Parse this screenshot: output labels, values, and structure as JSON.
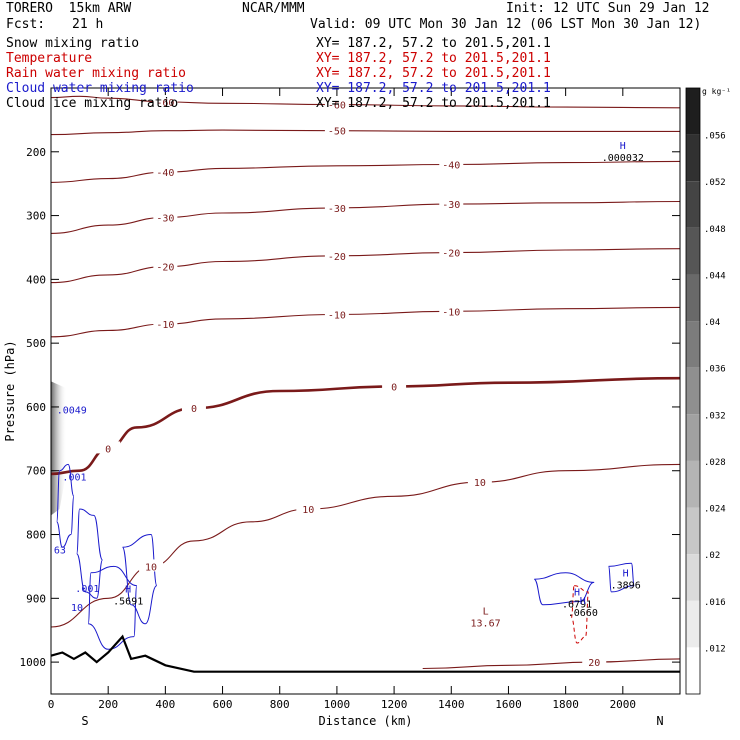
{
  "header": {
    "model": "TORERO  15km ARW",
    "center": "NCAR/MMM",
    "init": "Init: 12 UTC Sun 29 Jan 12",
    "fcst_label": "Fcst:",
    "fcst_value": "21 h",
    "valid": "Valid: 09 UTC Mon 30 Jan 12 (06 LST Mon 30 Jan 12)"
  },
  "fields": [
    {
      "name": "Snow mixing ratio",
      "xs": "XY= 187.2, 57.2 to 201.5,201.1",
      "color": "#000000"
    },
    {
      "name": "Temperature",
      "xs": "XY= 187.2, 57.2 to 201.5,201.1",
      "color": "#cc0000"
    },
    {
      "name": "Rain water mixing ratio",
      "xs": "XY= 187.2, 57.2 to 201.5,201.1",
      "color": "#cc0000"
    },
    {
      "name": "Cloud water mixing ratio",
      "xs": "XY= 187.2, 57.2 to 201.5,201.1",
      "color": "#1a1acc"
    },
    {
      "name": "Cloud ice mixing ratio",
      "xs": "XY= 187.2, 57.2 to 201.5,201.1",
      "color": "#000000"
    }
  ],
  "chart_data": {
    "type": "cross-section contour",
    "ylabel": "Pressure (hPa)",
    "xlabel": "Distance (km)",
    "x_ticks": [
      0,
      200,
      400,
      600,
      800,
      1000,
      1200,
      1400,
      1600,
      1800,
      2000
    ],
    "y_ticks": [
      200,
      300,
      400,
      500,
      600,
      700,
      800,
      900,
      1000
    ],
    "xlim": [
      0,
      2200
    ],
    "ylim": [
      1050,
      100
    ],
    "end_labels": {
      "left": "S",
      "right": "N"
    },
    "colorbar_unit": "g kg⁻¹",
    "colorbar_ticks": [
      ".056",
      ".052",
      ".048",
      ".044",
      ".04",
      ".036",
      ".032",
      ".028",
      ".024",
      ".02",
      ".016",
      ".012"
    ],
    "temperature_contours_C": [
      {
        "value": -60,
        "points": [
          [
            0,
            115
          ],
          [
            100,
            113
          ],
          [
            200,
            116
          ],
          [
            400,
            122
          ],
          [
            600,
            124
          ],
          [
            1000,
            126
          ],
          [
            1400,
            128
          ],
          [
            1800,
            130
          ],
          [
            2200,
            131
          ]
        ],
        "labels": [
          "-60",
          "-60"
        ]
      },
      {
        "value": -50,
        "points": [
          [
            0,
            173
          ],
          [
            200,
            170
          ],
          [
            400,
            167
          ],
          [
            600,
            166
          ],
          [
            1000,
            167
          ],
          [
            1400,
            168
          ],
          [
            1800,
            168
          ],
          [
            2200,
            168
          ]
        ],
        "labels": [
          "-50"
        ]
      },
      {
        "value": -40,
        "points": [
          [
            0,
            248
          ],
          [
            200,
            242
          ],
          [
            400,
            232
          ],
          [
            600,
            226
          ],
          [
            1000,
            222
          ],
          [
            1400,
            220
          ],
          [
            1800,
            217
          ],
          [
            2200,
            215
          ]
        ],
        "labels": [
          "-40",
          "-40"
        ]
      },
      {
        "value": -30,
        "points": [
          [
            0,
            328
          ],
          [
            200,
            315
          ],
          [
            400,
            303
          ],
          [
            600,
            296
          ],
          [
            1000,
            288
          ],
          [
            1400,
            282
          ],
          [
            1800,
            280
          ],
          [
            2200,
            278
          ]
        ],
        "labels": [
          "-30",
          "-30",
          "-30"
        ]
      },
      {
        "value": -20,
        "points": [
          [
            0,
            405
          ],
          [
            200,
            393
          ],
          [
            400,
            380
          ],
          [
            600,
            372
          ],
          [
            1000,
            363
          ],
          [
            1400,
            358
          ],
          [
            1800,
            354
          ],
          [
            2200,
            352
          ]
        ],
        "labels": [
          "-20",
          "-20",
          "-20"
        ]
      },
      {
        "value": -10,
        "points": [
          [
            0,
            490
          ],
          [
            200,
            480
          ],
          [
            400,
            470
          ],
          [
            600,
            462
          ],
          [
            1000,
            455
          ],
          [
            1400,
            450
          ],
          [
            1800,
            446
          ],
          [
            2200,
            444
          ]
        ],
        "labels": [
          "-10",
          "-10",
          "-10"
        ]
      },
      {
        "value": 0,
        "points": [
          [
            0,
            705
          ],
          [
            100,
            700
          ],
          [
            200,
            665
          ],
          [
            300,
            632
          ],
          [
            500,
            602
          ],
          [
            800,
            575
          ],
          [
            1200,
            568
          ],
          [
            1600,
            562
          ],
          [
            2200,
            555
          ]
        ],
        "labels": [
          "0",
          "0",
          "0"
        ],
        "bold": true
      },
      {
        "value": 10,
        "points": [
          [
            0,
            945
          ],
          [
            200,
            900
          ],
          [
            350,
            850
          ],
          [
            500,
            810
          ],
          [
            700,
            780
          ],
          [
            900,
            760
          ],
          [
            1200,
            740
          ],
          [
            1500,
            718
          ],
          [
            1800,
            700
          ],
          [
            2200,
            690
          ]
        ],
        "labels": [
          "10",
          "10",
          "10"
        ]
      },
      {
        "value": 20,
        "points": [
          [
            1300,
            1010
          ],
          [
            1600,
            1005
          ],
          [
            1900,
            1000
          ],
          [
            2200,
            995
          ]
        ],
        "labels": [
          "20"
        ]
      }
    ],
    "extrema": [
      {
        "type": "H",
        "value": ".000032",
        "x": 2000,
        "p": 205
      },
      {
        "type": "L",
        "value": "13.67",
        "x": 1520,
        "p": 935
      },
      {
        "type": "H",
        "value": ".5691",
        "x": 270,
        "p": 900
      },
      {
        "type": "H",
        "value": ".6791",
        "x": 1840,
        "p": 905
      },
      {
        "type": "H",
        "value": ".3896",
        "x": 2010,
        "p": 875
      },
      {
        "type": "H",
        "value": ".0660",
        "x": 1860,
        "p": 918
      }
    ],
    "annotations": [
      ".001",
      ".001",
      ".0049",
      "63",
      "10"
    ]
  }
}
